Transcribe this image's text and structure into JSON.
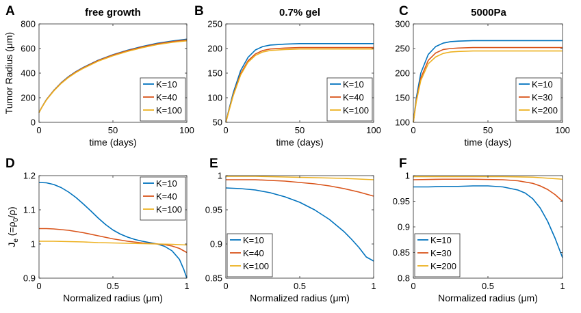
{
  "colors": {
    "blue": "#0072BD",
    "orange": "#D95319",
    "yellow": "#EDB120"
  },
  "chart_data": [
    {
      "panel": "A",
      "type": "line",
      "title": "free growth",
      "xlabel": "time (days)",
      "ylabel": "Tumor Radius (μm)",
      "ylabel_display": "Tumor Radius (μm)",
      "xlim": [
        0,
        100
      ],
      "ylim": [
        0,
        800
      ],
      "xticks": [
        0,
        50,
        100
      ],
      "xtick_labels": [
        "0",
        "50",
        "100"
      ],
      "yticks": [
        0,
        200,
        400,
        600,
        800
      ],
      "ytick_labels": [
        "0",
        "200",
        "400",
        "600",
        "800"
      ],
      "legend": "bottom-right",
      "series": [
        {
          "name": "K=10",
          "color": "#0072BD",
          "x": [
            0,
            2,
            5,
            10,
            15,
            20,
            25,
            30,
            40,
            50,
            60,
            70,
            80,
            90,
            100
          ],
          "y": [
            80,
            125,
            185,
            260,
            322,
            372,
            413,
            447,
            505,
            550,
            587,
            617,
            643,
            661,
            676
          ]
        },
        {
          "name": "K=40",
          "color": "#D95319",
          "x": [
            0,
            2,
            5,
            10,
            15,
            20,
            25,
            30,
            40,
            50,
            60,
            70,
            80,
            90,
            100
          ],
          "y": [
            80,
            124,
            183,
            258,
            320,
            369,
            410,
            444,
            502,
            547,
            583,
            613,
            638,
            656,
            670
          ]
        },
        {
          "name": "K=100",
          "color": "#EDB120",
          "x": [
            0,
            2,
            5,
            10,
            15,
            20,
            25,
            30,
            40,
            50,
            60,
            70,
            80,
            90,
            100
          ],
          "y": [
            80,
            123,
            181,
            255,
            316,
            365,
            405,
            439,
            497,
            541,
            577,
            607,
            632,
            650,
            663
          ]
        }
      ]
    },
    {
      "panel": "B",
      "type": "line",
      "title": "0.7% gel",
      "xlabel": "time (days)",
      "ylabel": "",
      "xlim": [
        0,
        100
      ],
      "ylim": [
        50,
        250
      ],
      "xticks": [
        0,
        50,
        100
      ],
      "xtick_labels": [
        "0",
        "50",
        "100"
      ],
      "yticks": [
        50,
        100,
        150,
        200,
        250
      ],
      "ytick_labels": [
        "50",
        "100",
        "150",
        "200",
        "250"
      ],
      "legend": "bottom-right",
      "series": [
        {
          "name": "K=10",
          "color": "#0072BD",
          "x": [
            0,
            2,
            5,
            10,
            15,
            20,
            25,
            30,
            40,
            50,
            60,
            80,
            100
          ],
          "y": [
            50,
            75,
            110,
            155,
            182,
            197,
            204,
            207,
            209,
            210,
            210,
            210,
            210
          ]
        },
        {
          "name": "K=40",
          "color": "#D95319",
          "x": [
            0,
            2,
            5,
            10,
            15,
            20,
            25,
            30,
            40,
            50,
            60,
            80,
            100
          ],
          "y": [
            50,
            73,
            106,
            149,
            175,
            189,
            196,
            199,
            201,
            202,
            202,
            202,
            202
          ]
        },
        {
          "name": "K=100",
          "color": "#EDB120",
          "x": [
            0,
            2,
            5,
            10,
            15,
            20,
            25,
            30,
            40,
            50,
            60,
            80,
            100
          ],
          "y": [
            50,
            72,
            104,
            146,
            172,
            186,
            193,
            196,
            198,
            199,
            199,
            199,
            199
          ]
        }
      ]
    },
    {
      "panel": "C",
      "type": "line",
      "title": "5000Pa",
      "xlabel": "time (days)",
      "ylabel": "",
      "xlim": [
        0,
        100
      ],
      "ylim": [
        100,
        300
      ],
      "xticks": [
        0,
        50,
        100
      ],
      "xtick_labels": [
        "0",
        "50",
        "100"
      ],
      "yticks": [
        100,
        150,
        200,
        250,
        300
      ],
      "ytick_labels": [
        "100",
        "150",
        "200",
        "250",
        "300"
      ],
      "legend": "bottom-right",
      "series": [
        {
          "name": "K=10",
          "color": "#0072BD",
          "x": [
            0,
            2,
            5,
            10,
            15,
            20,
            25,
            30,
            40,
            50,
            60,
            80,
            100
          ],
          "y": [
            100,
            150,
            200,
            238,
            254,
            261,
            264,
            265,
            266,
            266,
            266,
            266,
            266
          ]
        },
        {
          "name": "K=30",
          "color": "#D95319",
          "x": [
            0,
            2,
            5,
            10,
            15,
            20,
            25,
            30,
            40,
            50,
            60,
            80,
            100
          ],
          "y": [
            100,
            145,
            190,
            226,
            241,
            248,
            250,
            251,
            252,
            252,
            252,
            252,
            252
          ]
        },
        {
          "name": "K=200",
          "color": "#EDB120",
          "x": [
            0,
            2,
            5,
            10,
            15,
            20,
            25,
            30,
            40,
            50,
            60,
            80,
            100
          ],
          "y": [
            100,
            142,
            185,
            219,
            233,
            240,
            243,
            244,
            245,
            245,
            245,
            245,
            245
          ]
        }
      ]
    },
    {
      "panel": "D",
      "type": "line",
      "title": "",
      "xlabel": "Normalized radius (μm)",
      "ylabel": "Je (=ρ0/ρ)",
      "xlim": [
        0,
        1
      ],
      "ylim": [
        0.9,
        1.2
      ],
      "xticks": [
        0,
        0.5,
        1
      ],
      "xtick_labels": [
        "0",
        "0.5",
        "1"
      ],
      "yticks": [
        0.9,
        1.0,
        1.1,
        1.2
      ],
      "ytick_labels": [
        "0.9",
        "1",
        "1.1",
        "1.2"
      ],
      "legend": "top-right",
      "series": [
        {
          "name": "K=10",
          "color": "#0072BD",
          "x": [
            0,
            0.05,
            0.1,
            0.15,
            0.2,
            0.25,
            0.3,
            0.35,
            0.4,
            0.45,
            0.5,
            0.55,
            0.6,
            0.65,
            0.7,
            0.75,
            0.8,
            0.85,
            0.9,
            0.95,
            0.98,
            1
          ],
          "y": [
            1.18,
            1.179,
            1.174,
            1.165,
            1.152,
            1.136,
            1.117,
            1.097,
            1.076,
            1.057,
            1.041,
            1.029,
            1.02,
            1.013,
            1.008,
            1.004,
            1.0,
            0.993,
            0.98,
            0.955,
            0.925,
            0.9
          ]
        },
        {
          "name": "K=40",
          "color": "#D95319",
          "x": [
            0,
            0.05,
            0.1,
            0.2,
            0.3,
            0.4,
            0.5,
            0.6,
            0.7,
            0.8,
            0.85,
            0.9,
            0.95,
            1
          ],
          "y": [
            1.045,
            1.045,
            1.044,
            1.04,
            1.033,
            1.024,
            1.015,
            1.008,
            1.003,
            1.0,
            0.998,
            0.994,
            0.987,
            0.975
          ]
        },
        {
          "name": "K=100",
          "color": "#EDB120",
          "x": [
            0,
            0.1,
            0.2,
            0.3,
            0.4,
            0.5,
            0.6,
            0.7,
            0.8,
            0.9,
            1
          ],
          "y": [
            1.008,
            1.008,
            1.007,
            1.006,
            1.004,
            1.003,
            1.002,
            1.001,
            1.0,
            0.999,
            0.997
          ]
        }
      ]
    },
    {
      "panel": "E",
      "type": "line",
      "title": "",
      "xlabel": "Normalized radius (μm)",
      "ylabel": "",
      "xlim": [
        0,
        1
      ],
      "ylim": [
        0.85,
        1.0
      ],
      "xticks": [
        0,
        0.5,
        1
      ],
      "xtick_labels": [
        "0",
        "0.5",
        "1"
      ],
      "yticks": [
        0.85,
        0.9,
        0.95,
        1.0
      ],
      "ytick_labels": [
        "0.85",
        "0.9",
        "0.95",
        "1"
      ],
      "legend": "bottom-left",
      "series": [
        {
          "name": "K=10",
          "color": "#0072BD",
          "x": [
            0,
            0.1,
            0.2,
            0.3,
            0.4,
            0.5,
            0.6,
            0.7,
            0.8,
            0.85,
            0.9,
            0.95,
            1
          ],
          "y": [
            0.982,
            0.981,
            0.979,
            0.975,
            0.969,
            0.961,
            0.95,
            0.936,
            0.918,
            0.907,
            0.895,
            0.881,
            0.875
          ]
        },
        {
          "name": "K=40",
          "color": "#D95319",
          "x": [
            0,
            0.2,
            0.4,
            0.5,
            0.6,
            0.7,
            0.8,
            0.9,
            1
          ],
          "y": [
            0.994,
            0.994,
            0.992,
            0.99,
            0.988,
            0.985,
            0.981,
            0.976,
            0.97
          ]
        },
        {
          "name": "K=100",
          "color": "#EDB120",
          "x": [
            0,
            0.2,
            0.4,
            0.6,
            0.8,
            1
          ],
          "y": [
            0.999,
            0.999,
            0.998,
            0.997,
            0.996,
            0.994
          ]
        }
      ]
    },
    {
      "panel": "F",
      "type": "line",
      "title": "",
      "xlabel": "Normalized radius (μm)",
      "ylabel": "",
      "xlim": [
        0,
        1
      ],
      "ylim": [
        0.8,
        1.0
      ],
      "xticks": [
        0,
        0.5,
        1
      ],
      "xtick_labels": [
        "0",
        "0.5",
        "1"
      ],
      "yticks": [
        0.8,
        0.85,
        0.9,
        0.95,
        1.0
      ],
      "ytick_labels": [
        "0.8",
        "0.85",
        "0.9",
        "0.95",
        "1"
      ],
      "legend": "bottom-left",
      "series": [
        {
          "name": "K=10",
          "color": "#0072BD",
          "x": [
            0,
            0.1,
            0.2,
            0.3,
            0.4,
            0.5,
            0.6,
            0.7,
            0.75,
            0.8,
            0.85,
            0.9,
            0.95,
            1
          ],
          "y": [
            0.978,
            0.978,
            0.979,
            0.979,
            0.98,
            0.98,
            0.978,
            0.972,
            0.966,
            0.955,
            0.937,
            0.911,
            0.878,
            0.84
          ]
        },
        {
          "name": "K=30",
          "color": "#D95319",
          "x": [
            0,
            0.2,
            0.4,
            0.6,
            0.7,
            0.8,
            0.85,
            0.9,
            0.95,
            1
          ],
          "y": [
            0.992,
            0.993,
            0.993,
            0.992,
            0.99,
            0.985,
            0.98,
            0.973,
            0.963,
            0.95
          ]
        },
        {
          "name": "K=200",
          "color": "#EDB120",
          "x": [
            0,
            0.2,
            0.4,
            0.6,
            0.8,
            0.9,
            1
          ],
          "y": [
            0.998,
            0.998,
            0.998,
            0.998,
            0.997,
            0.995,
            0.993
          ]
        }
      ]
    }
  ]
}
